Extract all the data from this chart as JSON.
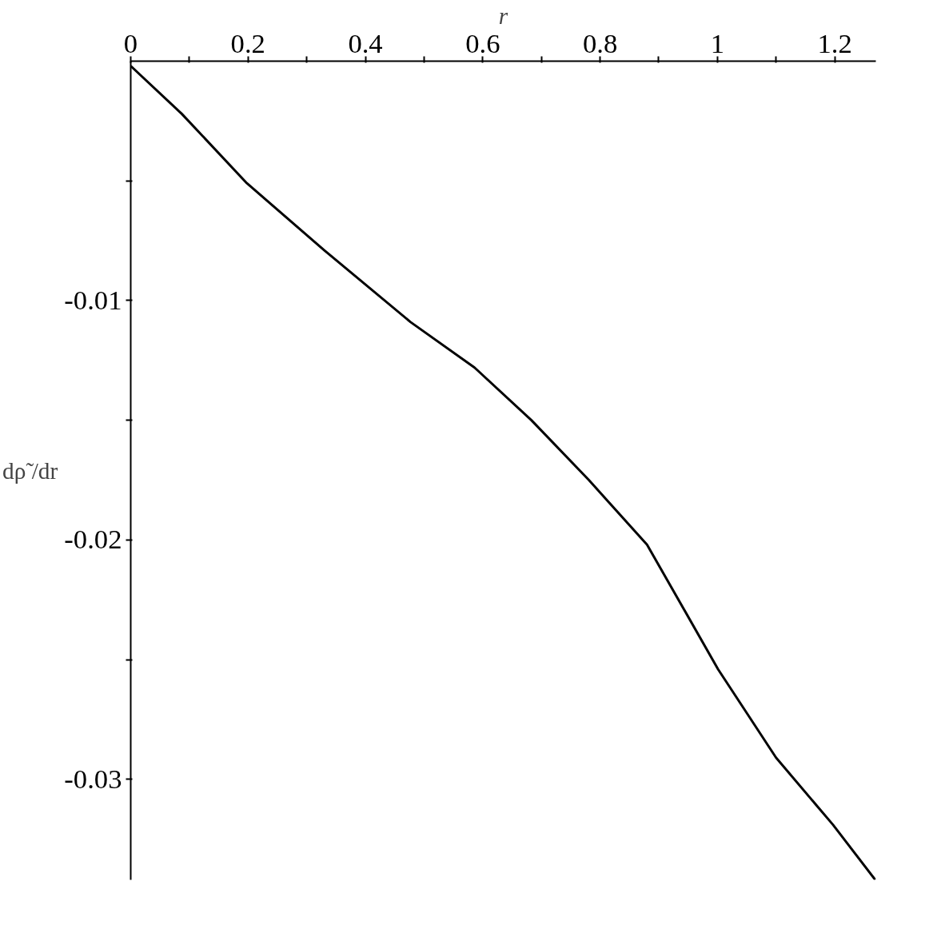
{
  "chart_data": {
    "type": "line",
    "xlabel": "r",
    "ylabel": "dρ̃ /dr",
    "x": [
      0,
      0.087,
      0.198,
      0.33,
      0.477,
      0.586,
      0.683,
      0.781,
      0.88,
      0.943,
      1.001,
      1.1,
      1.197,
      1.269
    ],
    "series": [
      {
        "color": "#000000",
        "values": [
          -0.0002,
          -0.0022,
          -0.0051,
          -0.0079,
          -0.0109,
          -0.0128,
          -0.015,
          -0.0175,
          -0.0202,
          -0.0229,
          -0.0254,
          -0.0291,
          -0.0319,
          -0.0342
        ]
      }
    ],
    "xlim": [
      0,
      1.27
    ],
    "ylim": [
      -0.0342,
      0
    ],
    "xticks": [
      0,
      {
        "value": 0.1,
        "label": null
      },
      0.2,
      {
        "value": 0.3,
        "label": null
      },
      0.4,
      {
        "value": 0.5,
        "label": null
      },
      0.6,
      {
        "value": 0.7,
        "label": null
      },
      0.8,
      {
        "value": 0.9,
        "label": null
      },
      1,
      {
        "value": 1.1,
        "label": null
      },
      1.2
    ],
    "yticks": [
      {
        "value": -0.005,
        "label": null
      },
      -0.01,
      {
        "value": -0.015,
        "label": null
      },
      -0.02,
      {
        "value": -0.025,
        "label": null
      },
      -0.03
    ],
    "grid": false,
    "marker": "none",
    "line_style": "solid"
  }
}
